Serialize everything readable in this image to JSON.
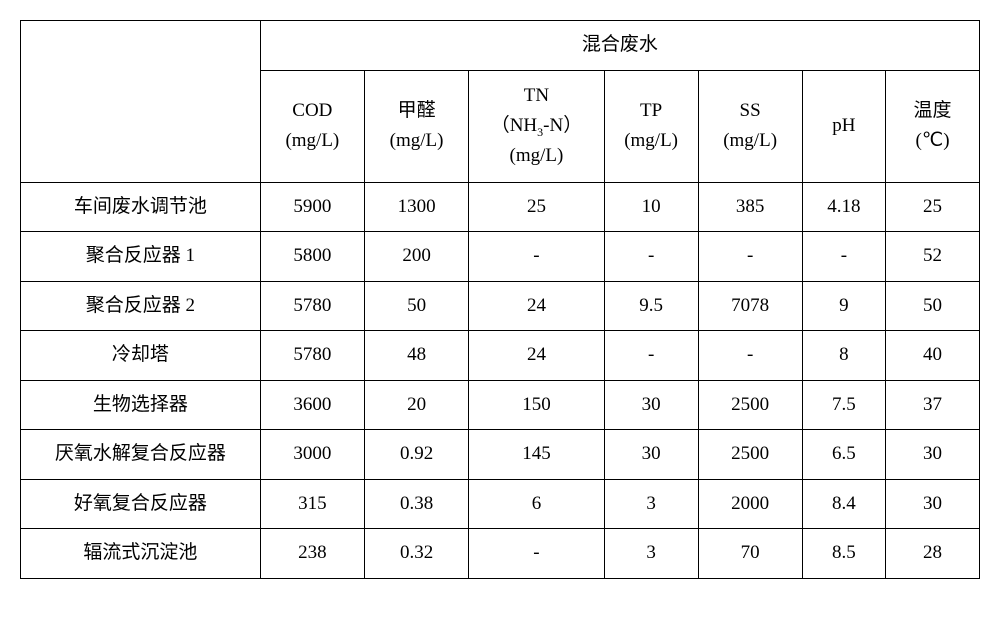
{
  "table": {
    "group_header": "混合废水",
    "columns": [
      {
        "top": "COD",
        "bottom": "(mg/L)"
      },
      {
        "top": "甲醛",
        "bottom": "(mg/L)"
      },
      {
        "top": "TN",
        "mid": "（NH₃-N）",
        "bottom": "(mg/L)"
      },
      {
        "top": "TP",
        "bottom": "(mg/L)"
      },
      {
        "top": "SS",
        "bottom": "(mg/L)"
      },
      {
        "top": "pH",
        "bottom": ""
      },
      {
        "top": "温度",
        "bottom": "(℃)"
      }
    ],
    "rows": [
      {
        "label": "车间废水调节池",
        "cells": [
          "5900",
          "1300",
          "25",
          "10",
          "385",
          "4.18",
          "25"
        ]
      },
      {
        "label": "聚合反应器 1",
        "cells": [
          "5800",
          "200",
          "-",
          "-",
          "-",
          "-",
          "52"
        ]
      },
      {
        "label": "聚合反应器 2",
        "cells": [
          "5780",
          "50",
          "24",
          "9.5",
          "7078",
          "9",
          "50"
        ]
      },
      {
        "label": "冷却塔",
        "cells": [
          "5780",
          "48",
          "24",
          "-",
          "-",
          "8",
          "40"
        ]
      },
      {
        "label": "生物选择器",
        "cells": [
          "3600",
          "20",
          "150",
          "30",
          "2500",
          "7.5",
          "37"
        ]
      },
      {
        "label": "厌氧水解复合反应器",
        "cells": [
          "3000",
          "0.92",
          "145",
          "30",
          "2500",
          "6.5",
          "30"
        ]
      },
      {
        "label": "好氧复合反应器",
        "cells": [
          "315",
          "0.38",
          "6",
          "3",
          "2000",
          "8.4",
          "30"
        ]
      },
      {
        "label": "辐流式沉淀池",
        "cells": [
          "238",
          "0.32",
          "-",
          "3",
          "70",
          "8.5",
          "28"
        ]
      }
    ]
  }
}
